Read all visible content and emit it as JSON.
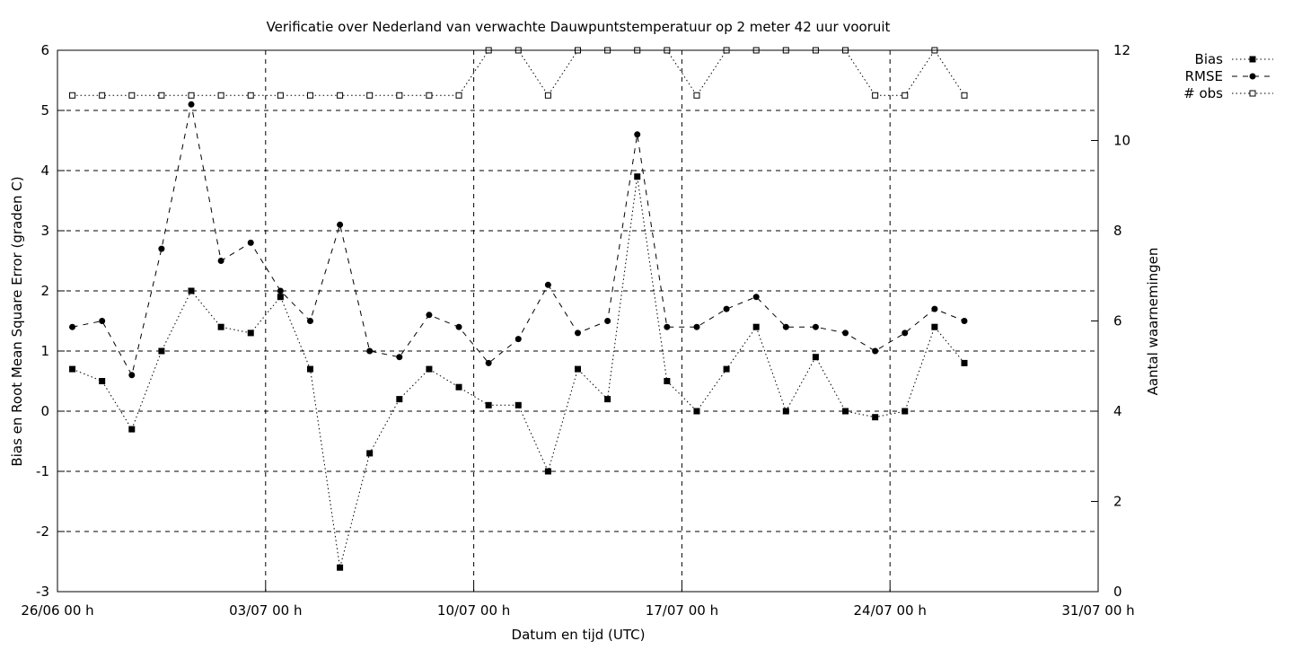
{
  "chart_data": {
    "type": "line",
    "title": "Verificatie over Nederland van verwachte Dauwpuntstemperatuur op 2 meter 42 uur vooruit",
    "xlabel": "Datum en tijd (UTC)",
    "ylabel": "Bias en Root Mean Square Error (graden C)",
    "y2label": "Aantal waarnemingen",
    "x_start": "2024-06-26T00:00",
    "x_end": "2024-07-31T00:00",
    "xticks": [
      "26/06 00 h",
      "03/07 00 h",
      "10/07 00 h",
      "17/07 00 h",
      "24/07 00 h",
      "31/07 00 h"
    ],
    "xtick_dates": [
      "2024-06-26T00:00",
      "2024-07-03T00:00",
      "2024-07-10T00:00",
      "2024-07-17T00:00",
      "2024-07-24T00:00",
      "2024-07-31T00:00"
    ],
    "ylim": [
      -3,
      6
    ],
    "yticks": [
      -3,
      -2,
      -1,
      0,
      1,
      2,
      3,
      4,
      5,
      6
    ],
    "y2lim": [
      0,
      12
    ],
    "y2ticks": [
      0,
      2,
      4,
      6,
      8,
      10,
      12
    ],
    "grid": true,
    "legend_position": "outside-top-right",
    "x": [
      "2024-06-26T12:00",
      "2024-06-27T12:00",
      "2024-06-28T12:00",
      "2024-06-29T12:00",
      "2024-06-30T12:00",
      "2024-07-01T12:00",
      "2024-07-02T12:00",
      "2024-07-03T12:00",
      "2024-07-04T12:00",
      "2024-07-05T12:00",
      "2024-07-06T12:00",
      "2024-07-07T12:00",
      "2024-07-08T12:00",
      "2024-07-09T12:00",
      "2024-07-10T12:00",
      "2024-07-11T12:00",
      "2024-07-12T12:00",
      "2024-07-13T12:00",
      "2024-07-14T12:00",
      "2024-07-15T12:00",
      "2024-07-16T12:00",
      "2024-07-17T12:00",
      "2024-07-18T12:00",
      "2024-07-19T12:00",
      "2024-07-20T12:00",
      "2024-07-21T12:00",
      "2024-07-22T12:00",
      "2024-07-23T12:00",
      "2024-07-24T12:00",
      "2024-07-25T12:00",
      "2024-07-26T12:00"
    ],
    "series": [
      {
        "name": "Bias",
        "axis": "left",
        "style": "dotted",
        "marker": "filled-square",
        "values": [
          0.7,
          0.5,
          -0.3,
          1.0,
          2.0,
          1.4,
          1.3,
          1.9,
          0.7,
          -2.6,
          -0.7,
          0.2,
          0.7,
          0.4,
          0.1,
          0.1,
          -1.0,
          0.7,
          0.2,
          3.9,
          0.5,
          0.0,
          0.7,
          1.4,
          0.0,
          0.9,
          0.0,
          -0.1,
          0.0,
          1.4,
          0.8
        ]
      },
      {
        "name": "RMSE",
        "axis": "left",
        "style": "dashed",
        "marker": "filled-circle",
        "values": [
          1.4,
          1.5,
          0.6,
          2.7,
          5.1,
          2.5,
          2.8,
          2.0,
          1.5,
          3.1,
          1.0,
          0.9,
          1.6,
          1.4,
          0.8,
          1.2,
          2.1,
          1.3,
          1.5,
          4.6,
          1.4,
          1.4,
          1.7,
          1.9,
          1.4,
          1.4,
          1.3,
          1.0,
          1.3,
          1.7,
          1.5
        ]
      },
      {
        "name": "# obs",
        "axis": "right",
        "style": "dotted",
        "marker": "open-square",
        "values": [
          11,
          11,
          11,
          11,
          11,
          11,
          11,
          11,
          11,
          11,
          11,
          11,
          11,
          11,
          12,
          12,
          11,
          12,
          12,
          12,
          12,
          11,
          12,
          12,
          12,
          12,
          12,
          11,
          11,
          12,
          11
        ]
      }
    ]
  }
}
